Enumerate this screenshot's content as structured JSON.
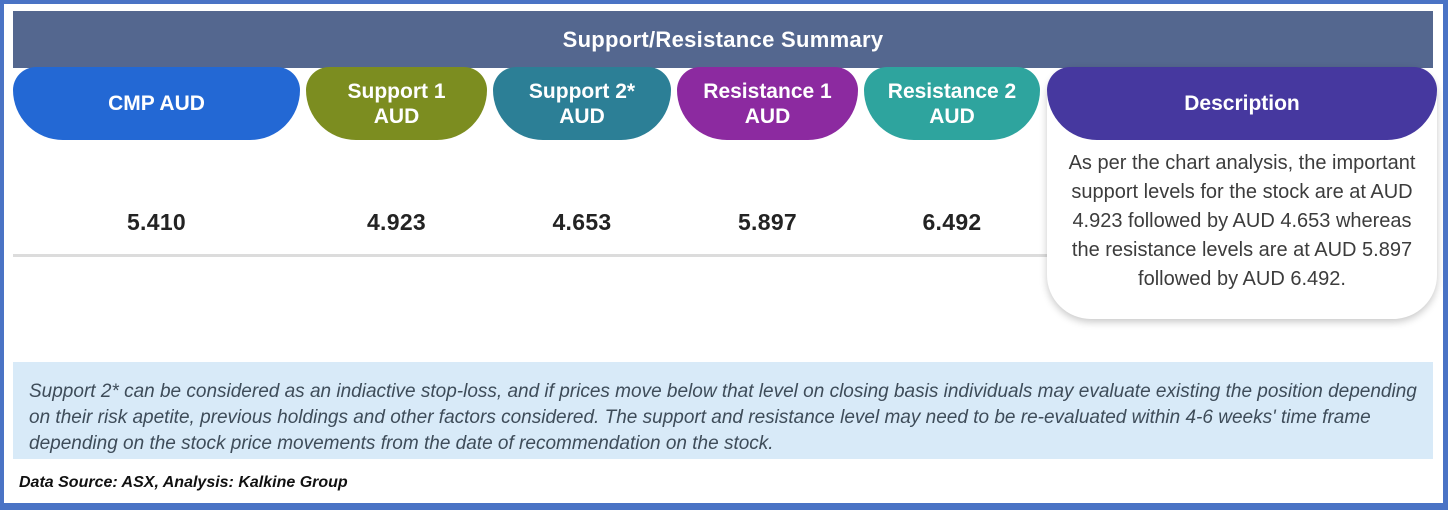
{
  "title": "Support/Resistance Summary",
  "table": {
    "columns": [
      {
        "label": "CMP AUD",
        "value": "5.410",
        "color": "#2368D4"
      },
      {
        "label": "Support 1\nAUD",
        "value": "4.923",
        "color": "#7C8D20"
      },
      {
        "label": "Support 2*\nAUD",
        "value": "4.653",
        "color": "#2C7F96"
      },
      {
        "label": "Resistance 1\nAUD",
        "value": "5.897",
        "color": "#8C2AA0"
      },
      {
        "label": "Resistance 2\nAUD",
        "value": "6.492",
        "color": "#2EA49E"
      }
    ],
    "description": {
      "label": "Description",
      "color": "#46389F",
      "text": "As per the chart analysis, the important support levels for the stock are at AUD 4.923 followed by AUD 4.653 whereas the resistance levels are at AUD 5.897 followed by AUD 6.492."
    }
  },
  "note": "Support 2* can be considered as an indiactive stop-loss, and if prices move below that level on closing basis individuals may evaluate existing the position depending on their risk apetite, previous holdings and other factors considered. The support and resistance level may need to be re-evaluated within 4-6 weeks' time frame depending on the stock price movements from  the date of recommendation on the stock.",
  "footer": "Data Source: ASX, Analysis: Kalkine Group",
  "colors": {
    "header_bar": "#54678F",
    "frame": "#4A73C5",
    "note_bg": "#D8EAF8"
  },
  "chart_data": {
    "type": "table",
    "title": "Support/Resistance Summary",
    "columns": [
      "CMP AUD",
      "Support 1 AUD",
      "Support 2* AUD",
      "Resistance 1 AUD",
      "Resistance 2 AUD",
      "Description"
    ],
    "rows": [
      [
        "5.410",
        "4.923",
        "4.653",
        "5.897",
        "6.492",
        "As per the chart analysis, the important support levels for the stock are at AUD 4.923 followed by AUD 4.653 whereas the resistance levels are at AUD 5.897 followed by AUD 6.492."
      ]
    ],
    "values": {
      "cmp_aud": 5.41,
      "support_1_aud": 4.923,
      "support_2_aud": 4.653,
      "resistance_1_aud": 5.897,
      "resistance_2_aud": 6.492
    }
  }
}
